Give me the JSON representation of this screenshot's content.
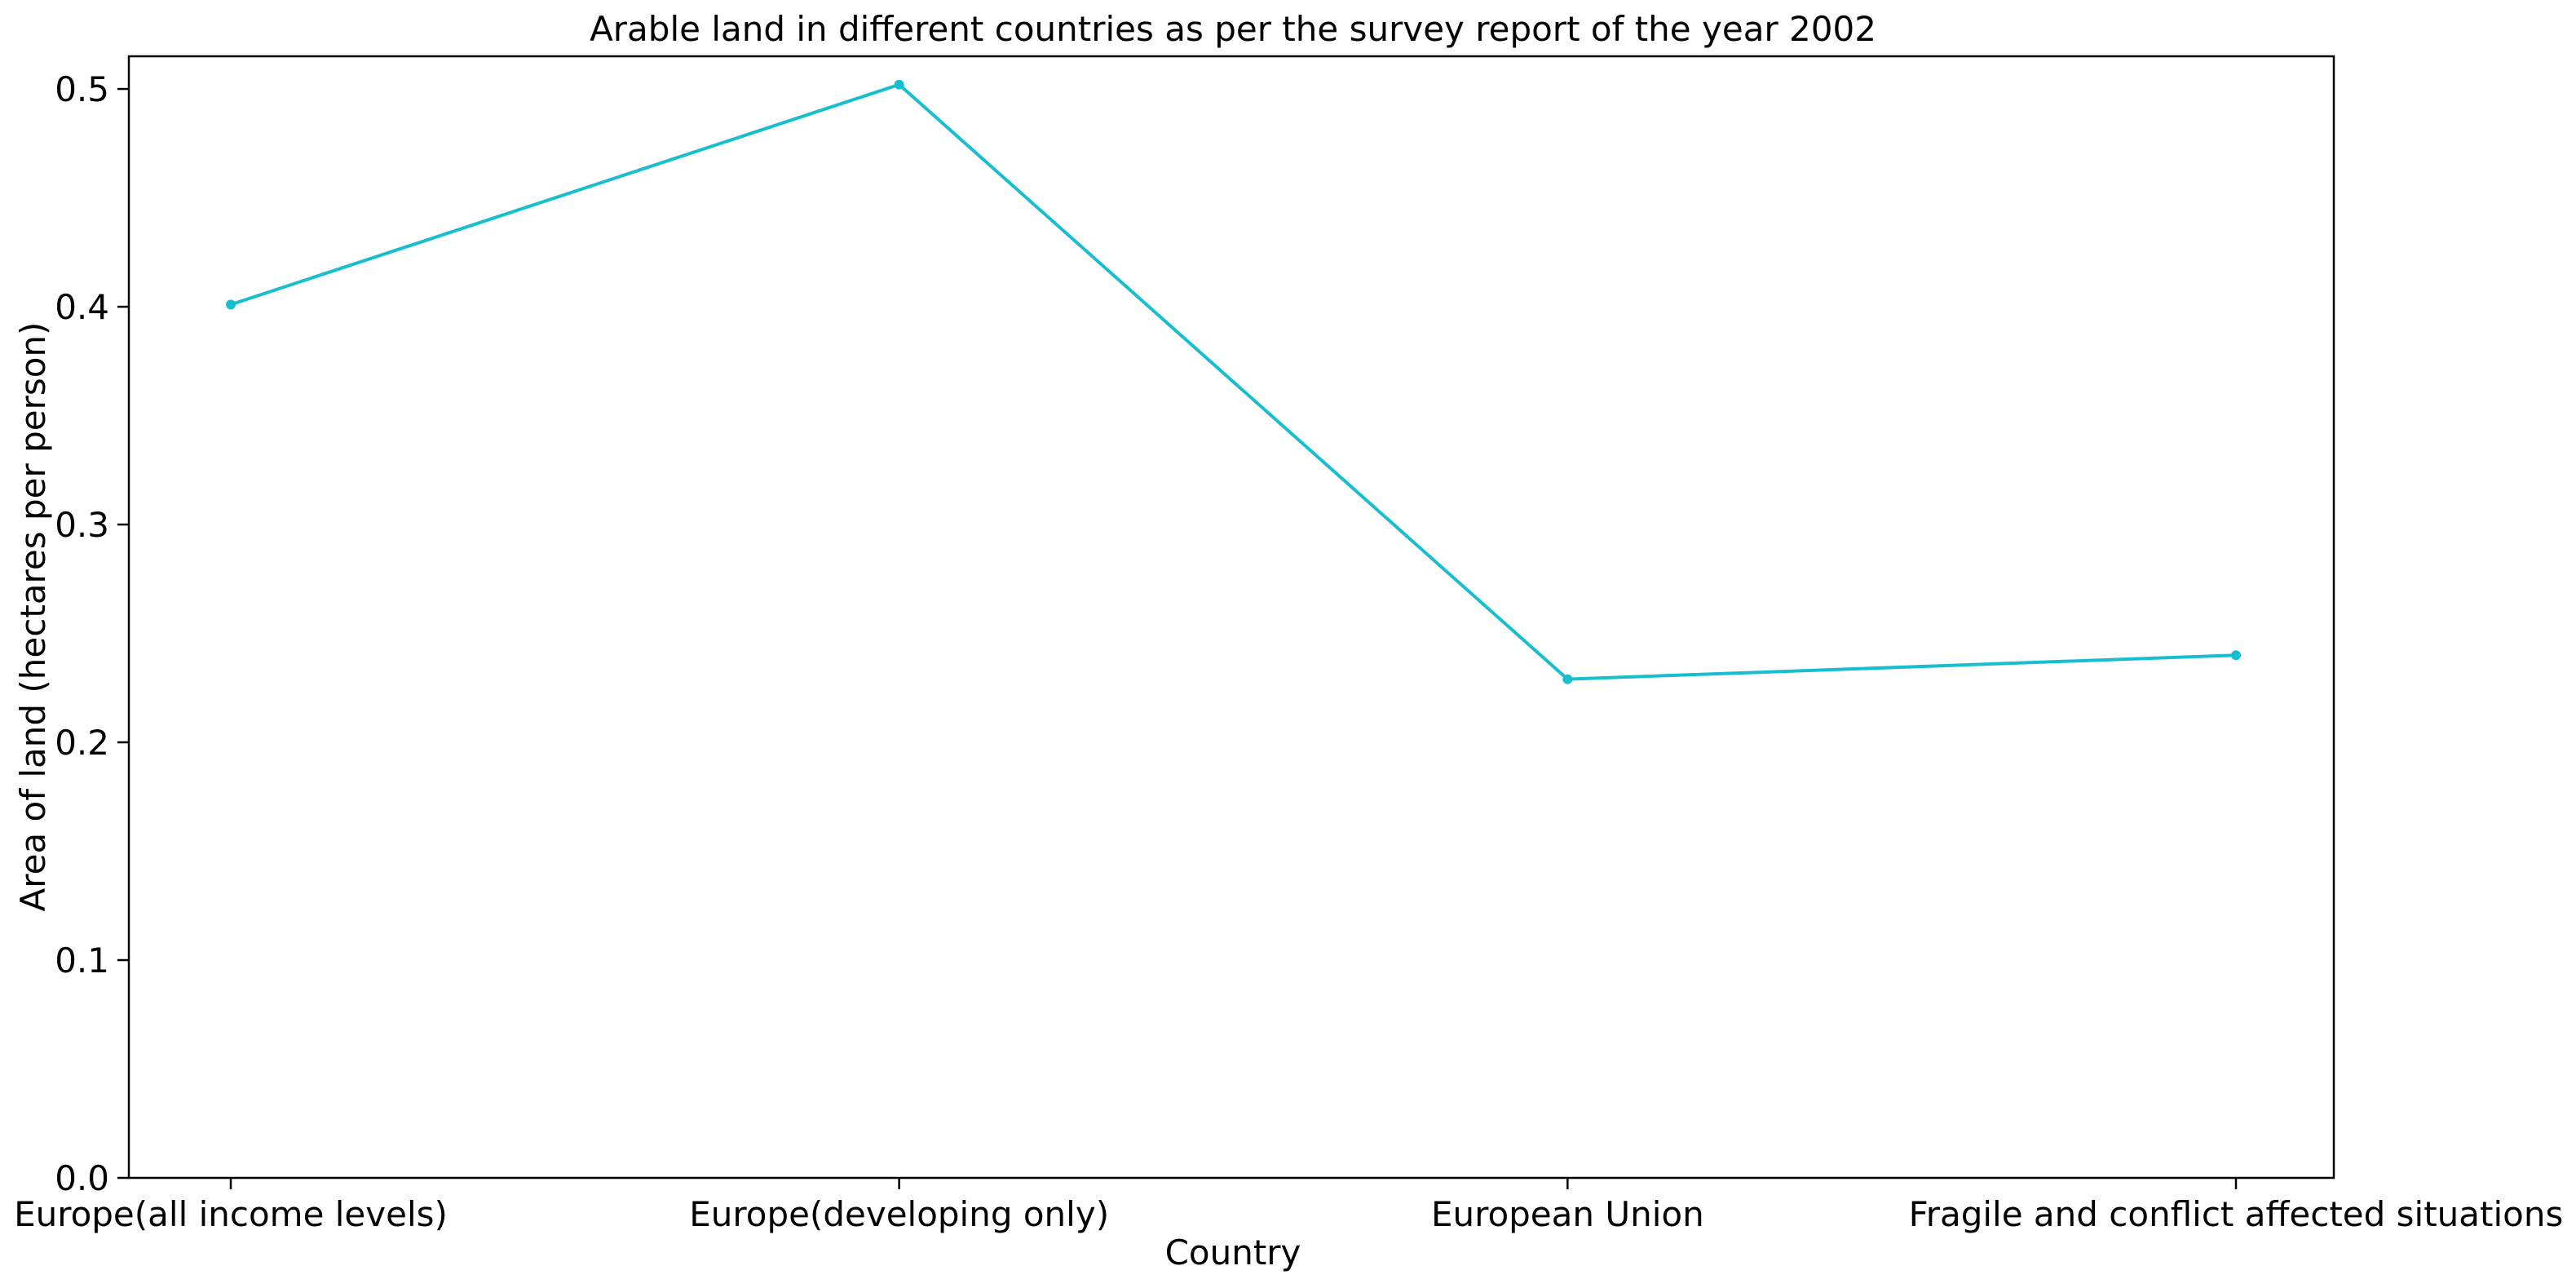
{
  "chart_data": {
    "type": "line",
    "title": "Arable land in different countries as per the survey report of the year 2002",
    "xlabel": "Country",
    "ylabel": "Area of land (hectares per person)",
    "categories": [
      "Europe(all income levels)",
      "Europe(developing only)",
      "European Union",
      "Fragile and conflict affected situations"
    ],
    "series": [
      {
        "values": [
          0.401,
          0.502,
          0.229,
          0.24
        ],
        "color": "#17becf",
        "marker": "point"
      }
    ],
    "ylim": [
      0,
      0.515
    ],
    "yticks": [
      0.0,
      0.1,
      0.2,
      0.3,
      0.4,
      0.5
    ],
    "ytick_labels": [
      "0.0",
      "0.1",
      "0.2",
      "0.3",
      "0.4",
      "0.5"
    ],
    "grid": false,
    "legend": "none"
  }
}
